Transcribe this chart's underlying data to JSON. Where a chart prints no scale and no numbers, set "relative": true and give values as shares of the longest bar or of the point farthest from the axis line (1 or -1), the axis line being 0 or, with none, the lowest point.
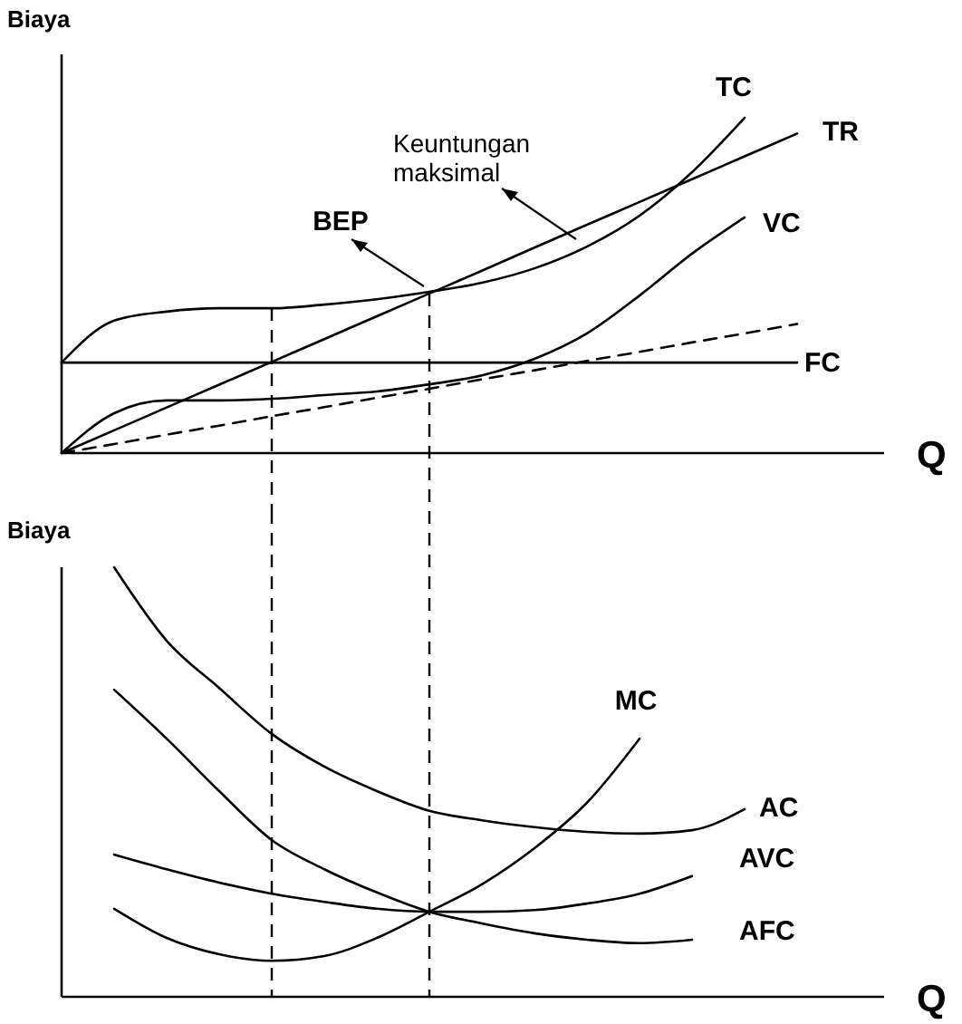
{
  "chart_data": [
    {
      "type": "line",
      "relative": true,
      "ylabel": "Biaya",
      "xlabel": "Q",
      "categories": [
        null,
        null,
        null,
        null,
        null,
        null,
        null,
        null,
        null,
        null,
        null,
        null,
        null,
        null,
        null,
        null
      ],
      "series": [
        {
          "name": "TC",
          "color": "#000000",
          "values": [
            0.27,
            0.395,
            0.422,
            0.432,
            0.432,
            0.443,
            0.459,
            0.481,
            0.508,
            0.551,
            0.616,
            0.708,
            0.838,
            1,
            null,
            null
          ]
        },
        {
          "name": "TR",
          "color": "#000000",
          "values": [
            0,
            0.068,
            0.136,
            0.204,
            0.272,
            0.34,
            0.408,
            0.476,
            0.544,
            0.613,
            0.681,
            0.749,
            0.817,
            0.885,
            0.953,
            null
          ]
        },
        {
          "name": "VC",
          "color": "#000000",
          "values": [
            0,
            0.119,
            0.157,
            0.157,
            0.162,
            0.173,
            0.184,
            0.205,
            0.232,
            0.281,
            0.357,
            0.47,
            0.595,
            0.703,
            null,
            null
          ]
        },
        {
          "name": "FC",
          "color": "#000000",
          "values": [
            0.27,
            0.27,
            0.27,
            0.27,
            0.27,
            0.27,
            0.27,
            0.27,
            0.27,
            0.27,
            0.27,
            0.27,
            0.27,
            0.27,
            0.27,
            null
          ]
        },
        {
          "color": "#000000",
          "line_style": "dashed",
          "values": [
            0,
            0.027,
            0.055,
            0.082,
            0.11,
            0.137,
            0.165,
            0.192,
            0.22,
            0.247,
            0.275,
            0.302,
            0.33,
            0.357,
            0.385,
            null
          ]
        }
      ],
      "annotations": [
        "BEP",
        "Keuntungan maksimal"
      ]
    },
    {
      "type": "line",
      "relative": true,
      "ylabel": "Biaya",
      "xlabel": "Q",
      "categories": [
        null,
        null,
        null,
        null,
        null,
        null,
        null,
        null,
        null,
        null,
        null,
        null,
        null,
        null,
        null,
        null
      ],
      "series": [
        {
          "name": "MC",
          "color": "#000000",
          "values": [
            null,
            0.205,
            0.137,
            0.099,
            0.084,
            0.095,
            0.137,
            0.198,
            0.262,
            0.346,
            0.452,
            0.601,
            null,
            null,
            null,
            null
          ]
        },
        {
          "name": "AC",
          "color": "#000000",
          "values": [
            null,
            1,
            0.829,
            0.719,
            0.612,
            0.536,
            0.479,
            0.433,
            0.411,
            0.395,
            0.384,
            0.38,
            0.388,
            0.437,
            null,
            null
          ]
        },
        {
          "name": "AVC",
          "color": "#000000",
          "values": [
            null,
            0.331,
            0.297,
            0.266,
            0.24,
            0.221,
            0.205,
            0.198,
            0.198,
            0.202,
            0.217,
            0.24,
            0.281,
            null,
            null,
            null
          ]
        },
        {
          "name": "AFC",
          "color": "#000000",
          "values": [
            null,
            0.715,
            0.601,
            0.479,
            0.365,
            0.297,
            0.243,
            0.198,
            0.171,
            0.148,
            0.133,
            0.125,
            0.133,
            null,
            null,
            null
          ]
        }
      ]
    }
  ]
}
